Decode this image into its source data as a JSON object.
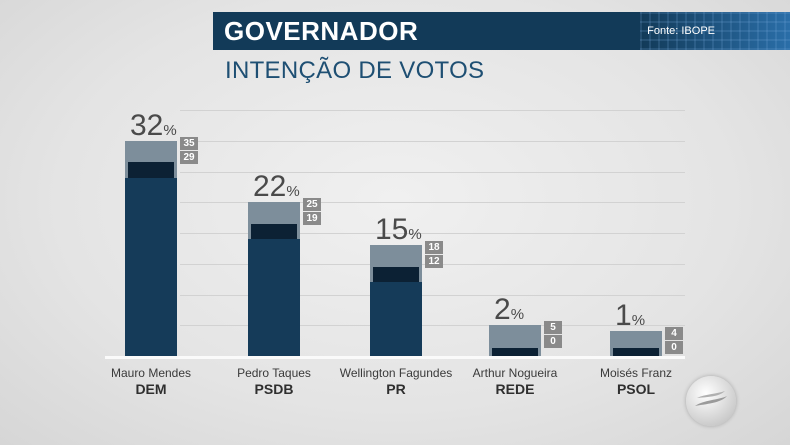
{
  "header": {
    "title": "GOVERNADOR",
    "source": "Fonte: IBOPE"
  },
  "subtitle": "INTENÇÃO DE VOTOS",
  "percent_sign": "%",
  "chart_data": {
    "type": "bar",
    "title": "GOVERNADOR",
    "subtitle": "INTENÇÃO DE VOTOS",
    "source": "Fonte: IBOPE",
    "ylim": [
      0,
      40
    ],
    "candidates": [
      {
        "name": "Mauro Mendes",
        "party": "DEM",
        "value": 32,
        "upper": 35,
        "lower": 29
      },
      {
        "name": "Pedro Taques",
        "party": "PSDB",
        "value": 22,
        "upper": 25,
        "lower": 19
      },
      {
        "name": "Wellington Fagundes",
        "party": "PR",
        "value": 15,
        "upper": 18,
        "lower": 12
      },
      {
        "name": "Arthur Nogueira",
        "party": "REDE",
        "value": 2,
        "upper": 5,
        "lower": 0
      },
      {
        "name": "Moisés Franz",
        "party": "PSOL",
        "value": 1,
        "upper": 4,
        "lower": 0
      }
    ]
  },
  "colors": {
    "header_bg": "#123a58",
    "bar": "#153b59",
    "margin_band": "#7d8e9b",
    "subtitle": "#1e4f73"
  },
  "logo_icon": "tv-station-logo"
}
